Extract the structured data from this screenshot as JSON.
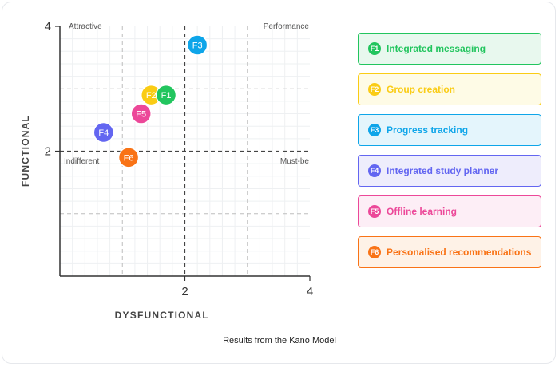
{
  "chart_data": {
    "type": "scatter",
    "title": "Results from the Kano Model",
    "xlabel": "DYSFUNCTIONAL",
    "ylabel": "FUNCTIONAL",
    "xlim": [
      0,
      4
    ],
    "ylim": [
      0,
      4
    ],
    "xticks": [
      "2",
      "4"
    ],
    "yticks": [
      "2",
      "4"
    ],
    "grid": true,
    "quadrants": {
      "top_left": "Attractive",
      "top_right": "Performance",
      "bottom_left": "Indifferent",
      "bottom_right": "Must-be"
    },
    "legend_placement": "right",
    "points": [
      {
        "id": "F1",
        "name": "Integrated messaging",
        "x": 1.7,
        "y": 2.9,
        "color": "#22c55e",
        "bg": "#e8f8ee"
      },
      {
        "id": "F2",
        "name": "Group creation",
        "x": 1.46,
        "y": 2.9,
        "color": "#facc15",
        "bg": "#fefbe6"
      },
      {
        "id": "F3",
        "name": "Progress tracking",
        "x": 2.2,
        "y": 3.7,
        "color": "#0ea5e9",
        "bg": "#e4f5fc"
      },
      {
        "id": "F4",
        "name": "Integrated study planner",
        "x": 0.7,
        "y": 2.3,
        "color": "#6366f1",
        "bg": "#eeedfc"
      },
      {
        "id": "F5",
        "name": "Offline learning",
        "x": 1.3,
        "y": 2.6,
        "color": "#ec4899",
        "bg": "#fdeef6"
      },
      {
        "id": "F6",
        "name": "Personalised recommendations",
        "x": 1.1,
        "y": 1.9,
        "color": "#f97316",
        "bg": "#fef2e7"
      }
    ]
  }
}
